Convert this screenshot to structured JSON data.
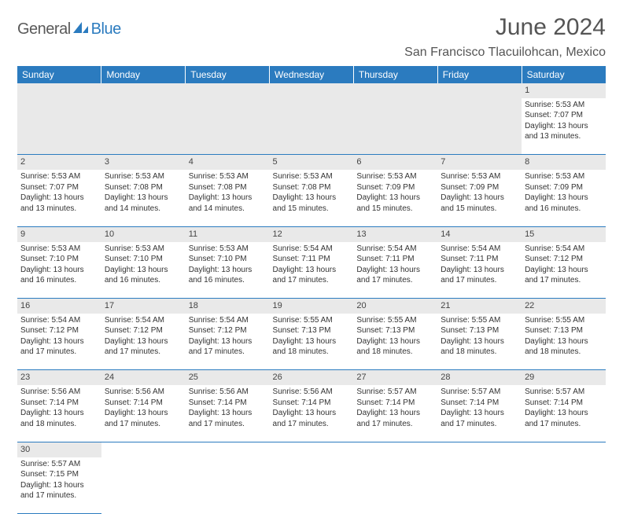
{
  "logo": {
    "text1": "General",
    "text2": "Blue"
  },
  "header": {
    "title": "June 2024",
    "location": "San Francisco Tlacuilohcan, Mexico"
  },
  "days": [
    "Sunday",
    "Monday",
    "Tuesday",
    "Wednesday",
    "Thursday",
    "Friday",
    "Saturday"
  ],
  "colors": {
    "header_bg": "#2b7bbf",
    "header_text": "#ffffff",
    "daynum_bg": "#e9e9e9",
    "border": "#2b7bbf",
    "title_color": "#555555",
    "logo_gray": "#5a5a5a",
    "logo_blue": "#2b7bbf"
  },
  "weeks": [
    [
      {
        "n": "",
        "sr": "",
        "ss": "",
        "dl1": "",
        "dl2": ""
      },
      {
        "n": "",
        "sr": "",
        "ss": "",
        "dl1": "",
        "dl2": ""
      },
      {
        "n": "",
        "sr": "",
        "ss": "",
        "dl1": "",
        "dl2": ""
      },
      {
        "n": "",
        "sr": "",
        "ss": "",
        "dl1": "",
        "dl2": ""
      },
      {
        "n": "",
        "sr": "",
        "ss": "",
        "dl1": "",
        "dl2": ""
      },
      {
        "n": "",
        "sr": "",
        "ss": "",
        "dl1": "",
        "dl2": ""
      },
      {
        "n": "1",
        "sr": "Sunrise: 5:53 AM",
        "ss": "Sunset: 7:07 PM",
        "dl1": "Daylight: 13 hours",
        "dl2": "and 13 minutes."
      }
    ],
    [
      {
        "n": "2",
        "sr": "Sunrise: 5:53 AM",
        "ss": "Sunset: 7:07 PM",
        "dl1": "Daylight: 13 hours",
        "dl2": "and 13 minutes."
      },
      {
        "n": "3",
        "sr": "Sunrise: 5:53 AM",
        "ss": "Sunset: 7:08 PM",
        "dl1": "Daylight: 13 hours",
        "dl2": "and 14 minutes."
      },
      {
        "n": "4",
        "sr": "Sunrise: 5:53 AM",
        "ss": "Sunset: 7:08 PM",
        "dl1": "Daylight: 13 hours",
        "dl2": "and 14 minutes."
      },
      {
        "n": "5",
        "sr": "Sunrise: 5:53 AM",
        "ss": "Sunset: 7:08 PM",
        "dl1": "Daylight: 13 hours",
        "dl2": "and 15 minutes."
      },
      {
        "n": "6",
        "sr": "Sunrise: 5:53 AM",
        "ss": "Sunset: 7:09 PM",
        "dl1": "Daylight: 13 hours",
        "dl2": "and 15 minutes."
      },
      {
        "n": "7",
        "sr": "Sunrise: 5:53 AM",
        "ss": "Sunset: 7:09 PM",
        "dl1": "Daylight: 13 hours",
        "dl2": "and 15 minutes."
      },
      {
        "n": "8",
        "sr": "Sunrise: 5:53 AM",
        "ss": "Sunset: 7:09 PM",
        "dl1": "Daylight: 13 hours",
        "dl2": "and 16 minutes."
      }
    ],
    [
      {
        "n": "9",
        "sr": "Sunrise: 5:53 AM",
        "ss": "Sunset: 7:10 PM",
        "dl1": "Daylight: 13 hours",
        "dl2": "and 16 minutes."
      },
      {
        "n": "10",
        "sr": "Sunrise: 5:53 AM",
        "ss": "Sunset: 7:10 PM",
        "dl1": "Daylight: 13 hours",
        "dl2": "and 16 minutes."
      },
      {
        "n": "11",
        "sr": "Sunrise: 5:53 AM",
        "ss": "Sunset: 7:10 PM",
        "dl1": "Daylight: 13 hours",
        "dl2": "and 16 minutes."
      },
      {
        "n": "12",
        "sr": "Sunrise: 5:54 AM",
        "ss": "Sunset: 7:11 PM",
        "dl1": "Daylight: 13 hours",
        "dl2": "and 17 minutes."
      },
      {
        "n": "13",
        "sr": "Sunrise: 5:54 AM",
        "ss": "Sunset: 7:11 PM",
        "dl1": "Daylight: 13 hours",
        "dl2": "and 17 minutes."
      },
      {
        "n": "14",
        "sr": "Sunrise: 5:54 AM",
        "ss": "Sunset: 7:11 PM",
        "dl1": "Daylight: 13 hours",
        "dl2": "and 17 minutes."
      },
      {
        "n": "15",
        "sr": "Sunrise: 5:54 AM",
        "ss": "Sunset: 7:12 PM",
        "dl1": "Daylight: 13 hours",
        "dl2": "and 17 minutes."
      }
    ],
    [
      {
        "n": "16",
        "sr": "Sunrise: 5:54 AM",
        "ss": "Sunset: 7:12 PM",
        "dl1": "Daylight: 13 hours",
        "dl2": "and 17 minutes."
      },
      {
        "n": "17",
        "sr": "Sunrise: 5:54 AM",
        "ss": "Sunset: 7:12 PM",
        "dl1": "Daylight: 13 hours",
        "dl2": "and 17 minutes."
      },
      {
        "n": "18",
        "sr": "Sunrise: 5:54 AM",
        "ss": "Sunset: 7:12 PM",
        "dl1": "Daylight: 13 hours",
        "dl2": "and 17 minutes."
      },
      {
        "n": "19",
        "sr": "Sunrise: 5:55 AM",
        "ss": "Sunset: 7:13 PM",
        "dl1": "Daylight: 13 hours",
        "dl2": "and 18 minutes."
      },
      {
        "n": "20",
        "sr": "Sunrise: 5:55 AM",
        "ss": "Sunset: 7:13 PM",
        "dl1": "Daylight: 13 hours",
        "dl2": "and 18 minutes."
      },
      {
        "n": "21",
        "sr": "Sunrise: 5:55 AM",
        "ss": "Sunset: 7:13 PM",
        "dl1": "Daylight: 13 hours",
        "dl2": "and 18 minutes."
      },
      {
        "n": "22",
        "sr": "Sunrise: 5:55 AM",
        "ss": "Sunset: 7:13 PM",
        "dl1": "Daylight: 13 hours",
        "dl2": "and 18 minutes."
      }
    ],
    [
      {
        "n": "23",
        "sr": "Sunrise: 5:56 AM",
        "ss": "Sunset: 7:14 PM",
        "dl1": "Daylight: 13 hours",
        "dl2": "and 18 minutes."
      },
      {
        "n": "24",
        "sr": "Sunrise: 5:56 AM",
        "ss": "Sunset: 7:14 PM",
        "dl1": "Daylight: 13 hours",
        "dl2": "and 17 minutes."
      },
      {
        "n": "25",
        "sr": "Sunrise: 5:56 AM",
        "ss": "Sunset: 7:14 PM",
        "dl1": "Daylight: 13 hours",
        "dl2": "and 17 minutes."
      },
      {
        "n": "26",
        "sr": "Sunrise: 5:56 AM",
        "ss": "Sunset: 7:14 PM",
        "dl1": "Daylight: 13 hours",
        "dl2": "and 17 minutes."
      },
      {
        "n": "27",
        "sr": "Sunrise: 5:57 AM",
        "ss": "Sunset: 7:14 PM",
        "dl1": "Daylight: 13 hours",
        "dl2": "and 17 minutes."
      },
      {
        "n": "28",
        "sr": "Sunrise: 5:57 AM",
        "ss": "Sunset: 7:14 PM",
        "dl1": "Daylight: 13 hours",
        "dl2": "and 17 minutes."
      },
      {
        "n": "29",
        "sr": "Sunrise: 5:57 AM",
        "ss": "Sunset: 7:14 PM",
        "dl1": "Daylight: 13 hours",
        "dl2": "and 17 minutes."
      }
    ],
    [
      {
        "n": "30",
        "sr": "Sunrise: 5:57 AM",
        "ss": "Sunset: 7:15 PM",
        "dl1": "Daylight: 13 hours",
        "dl2": "and 17 minutes."
      },
      {
        "n": "",
        "sr": "",
        "ss": "",
        "dl1": "",
        "dl2": ""
      },
      {
        "n": "",
        "sr": "",
        "ss": "",
        "dl1": "",
        "dl2": ""
      },
      {
        "n": "",
        "sr": "",
        "ss": "",
        "dl1": "",
        "dl2": ""
      },
      {
        "n": "",
        "sr": "",
        "ss": "",
        "dl1": "",
        "dl2": ""
      },
      {
        "n": "",
        "sr": "",
        "ss": "",
        "dl1": "",
        "dl2": ""
      },
      {
        "n": "",
        "sr": "",
        "ss": "",
        "dl1": "",
        "dl2": ""
      }
    ]
  ]
}
